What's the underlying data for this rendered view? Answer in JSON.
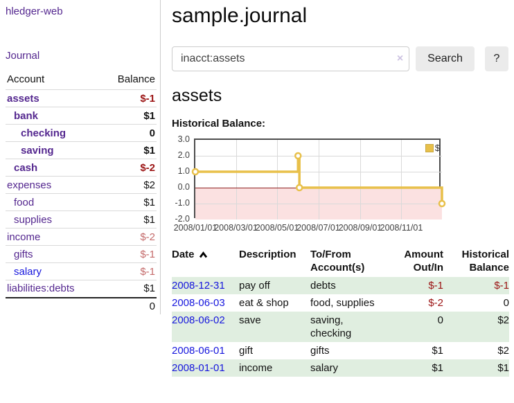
{
  "colors": {
    "link_purple": "#54278f",
    "link_blue": "#1616dd",
    "negative_strong": "#9b1313",
    "negative_soft": "#c46a6a",
    "row_green": "#e0eee0",
    "series_gold": "#e8c04a",
    "below_zero_pink": "#fbe1e1",
    "zero_line_red": "#8b1a1a"
  },
  "sidebar": {
    "brand": "hledger-web",
    "journal_link": "Journal",
    "account_header": "Account",
    "balance_header": "Balance",
    "accounts": [
      {
        "name": "assets",
        "balance": "$-1",
        "level": 1,
        "bold": true,
        "balance_style": "neg-strong",
        "link_color": "purple"
      },
      {
        "name": "bank",
        "balance": "$1",
        "level": 2,
        "bold": true,
        "balance_style": "pos",
        "link_color": "purple"
      },
      {
        "name": "checking",
        "balance": "0",
        "level": 3,
        "bold": true,
        "balance_style": "pos",
        "link_color": "purple"
      },
      {
        "name": "saving",
        "balance": "$1",
        "level": 3,
        "bold": true,
        "balance_style": "pos",
        "link_color": "purple"
      },
      {
        "name": "cash",
        "balance": "$-2",
        "level": 2,
        "bold": true,
        "balance_style": "neg-strong",
        "link_color": "purple"
      },
      {
        "name": "expenses",
        "balance": "$2",
        "level": 1,
        "bold": false,
        "balance_style": "pos",
        "link_color": "purple"
      },
      {
        "name": "food",
        "balance": "$1",
        "level": 2,
        "bold": false,
        "balance_style": "pos",
        "link_color": "purple"
      },
      {
        "name": "supplies",
        "balance": "$1",
        "level": 2,
        "bold": false,
        "balance_style": "pos",
        "link_color": "purple"
      },
      {
        "name": "income",
        "balance": "$-2",
        "level": 1,
        "bold": false,
        "balance_style": "neg-soft",
        "link_color": "purple"
      },
      {
        "name": "gifts",
        "balance": "$-1",
        "level": 2,
        "bold": false,
        "balance_style": "neg-soft",
        "link_color": "purple"
      },
      {
        "name": "salary",
        "balance": "$-1",
        "level": 2,
        "bold": false,
        "balance_style": "neg-soft",
        "link_color": "blue"
      },
      {
        "name": "liabilities:debts",
        "balance": "$1",
        "level": 1,
        "bold": false,
        "balance_style": "pos",
        "link_color": "purple"
      }
    ],
    "total": "0"
  },
  "main": {
    "title": "sample.journal",
    "search": {
      "value": "inacct:assets",
      "clear_icon": "×",
      "search_button": "Search",
      "help_button": "?"
    },
    "account_title": "assets",
    "chart_title": "Historical Balance:"
  },
  "chart_data": {
    "type": "line",
    "step": "after",
    "series": [
      {
        "name": "$",
        "points": [
          {
            "date": "2008/01/01",
            "value": 1
          },
          {
            "date": "2008/06/01",
            "value": 2
          },
          {
            "date": "2008/06/03",
            "value": 0
          },
          {
            "date": "2008/12/31",
            "value": -1
          }
        ]
      }
    ],
    "x_range": [
      "2008/01/01",
      "2008/12/31"
    ],
    "ylim": [
      -2,
      3
    ],
    "yticks": [
      3.0,
      2.0,
      1.0,
      0.0,
      -1.0,
      -2.0
    ],
    "ytick_labels": [
      "3.0",
      "2.0",
      "1.0",
      "0.0",
      "-1.0",
      "-2.0"
    ],
    "xticks": [
      "2008/01/01",
      "2008/03/01",
      "2008/05/01",
      "2008/07/01",
      "2008/09/01",
      "2008/11/01"
    ],
    "grid": true,
    "legend": {
      "label": "$",
      "position": "top-right"
    },
    "negative_region_shaded": true
  },
  "register": {
    "headers": [
      "Date",
      "Description",
      "To/From Account(s)",
      "Amount Out/In",
      "Historical Balance"
    ],
    "sort": {
      "column": "Date",
      "direction": "ascending"
    },
    "rows": [
      {
        "date": "2008-12-31",
        "description": "pay off",
        "accounts": "debts",
        "amount": "$-1",
        "amount_style": "neg",
        "balance": "$-1",
        "balance_style": "neg",
        "shaded": true
      },
      {
        "date": "2008-06-03",
        "description": "eat & shop",
        "accounts": "food, supplies",
        "amount": "$-2",
        "amount_style": "neg",
        "balance": "0",
        "balance_style": "pos",
        "shaded": false
      },
      {
        "date": "2008-06-02",
        "description": "save",
        "accounts": "saving, checking",
        "amount": "0",
        "amount_style": "pos",
        "balance": "$2",
        "balance_style": "pos",
        "shaded": true
      },
      {
        "date": "2008-06-01",
        "description": "gift",
        "accounts": "gifts",
        "amount": "$1",
        "amount_style": "pos",
        "balance": "$2",
        "balance_style": "pos",
        "shaded": false
      },
      {
        "date": "2008-01-01",
        "description": "income",
        "accounts": "salary",
        "amount": "$1",
        "amount_style": "pos",
        "balance": "$1",
        "balance_style": "pos",
        "shaded": true
      }
    ]
  }
}
